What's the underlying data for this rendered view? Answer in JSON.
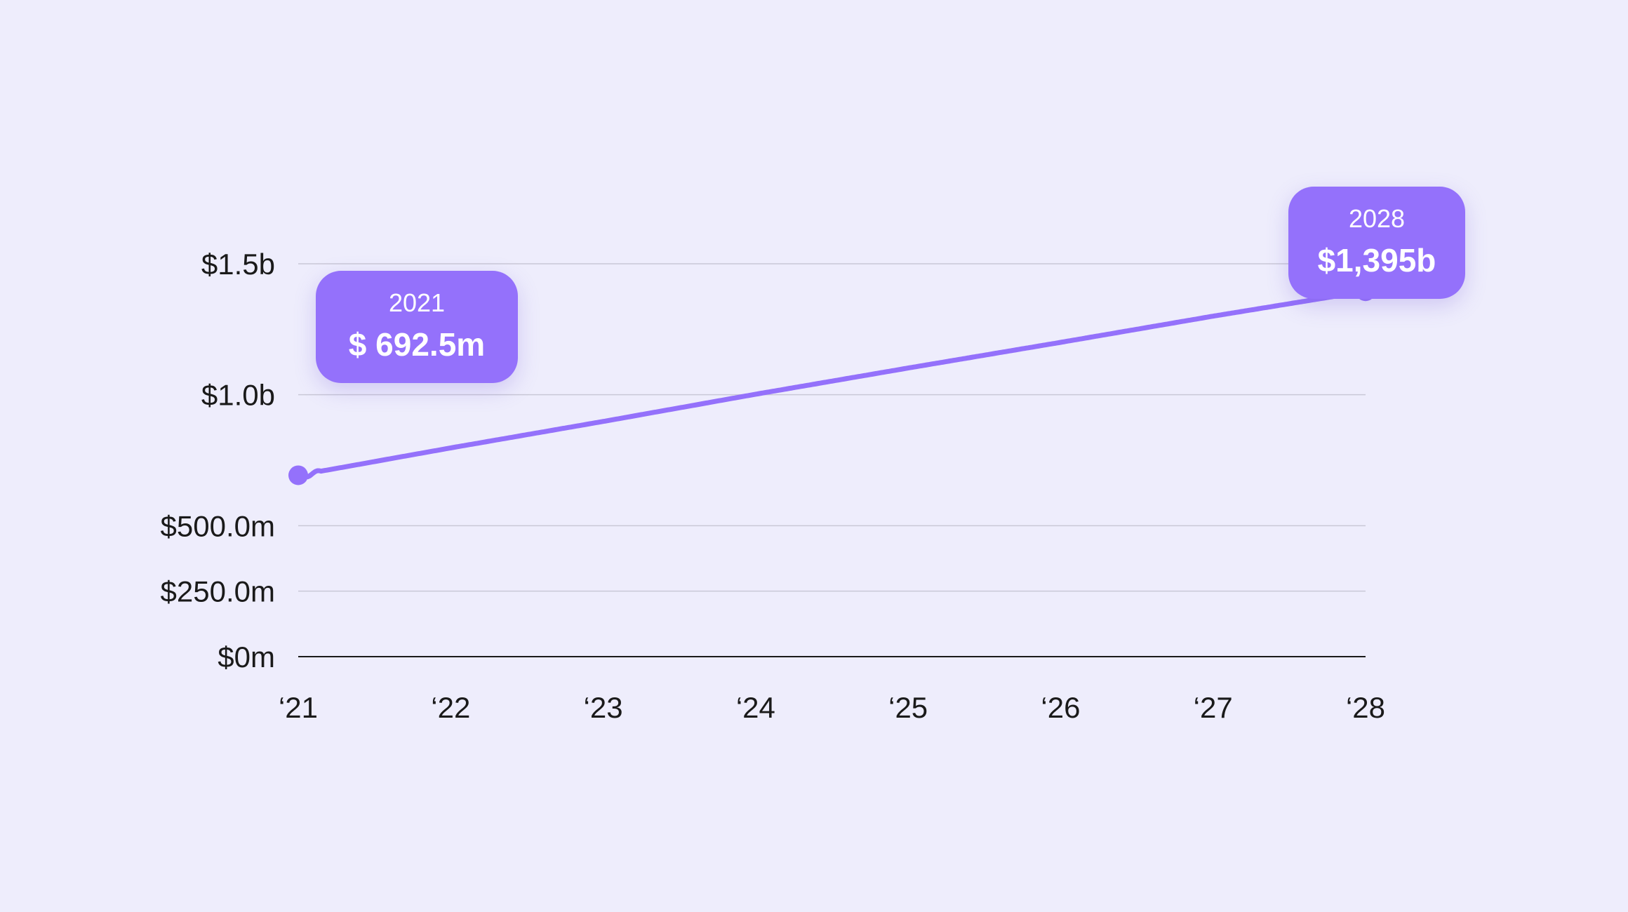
{
  "colors": {
    "background": "#eeedfc",
    "line": "#9471fb",
    "callout": "#9471fb",
    "grid": "#c9c8d6",
    "baseline": "#1a1a1a"
  },
  "callouts": {
    "start": {
      "year": "2021",
      "value": "$ 692.5m"
    },
    "end": {
      "year": "2028",
      "value": "$1,395b"
    }
  },
  "chart_data": {
    "type": "line",
    "x": [
      2021,
      2022,
      2023,
      2024,
      2025,
      2026,
      2027,
      2028
    ],
    "x_tick_labels": [
      "‘21",
      "‘22",
      "‘23",
      "‘24",
      "‘25",
      "‘26",
      "‘27",
      "‘28"
    ],
    "series": [
      {
        "values": [
          692.5,
          797,
          898,
          1002,
          1102,
          1200,
          1300,
          1395
        ]
      }
    ],
    "y_unit": "millions USD",
    "y_ticks": [
      0,
      250,
      500,
      1000,
      1500
    ],
    "y_tick_labels": [
      "$0m",
      "$250.0m",
      "$500.0m",
      "$1.0b",
      "$1.5b"
    ],
    "ylim": [
      0,
      1500
    ],
    "grid": true,
    "title": "",
    "xlabel": "",
    "ylabel": ""
  }
}
